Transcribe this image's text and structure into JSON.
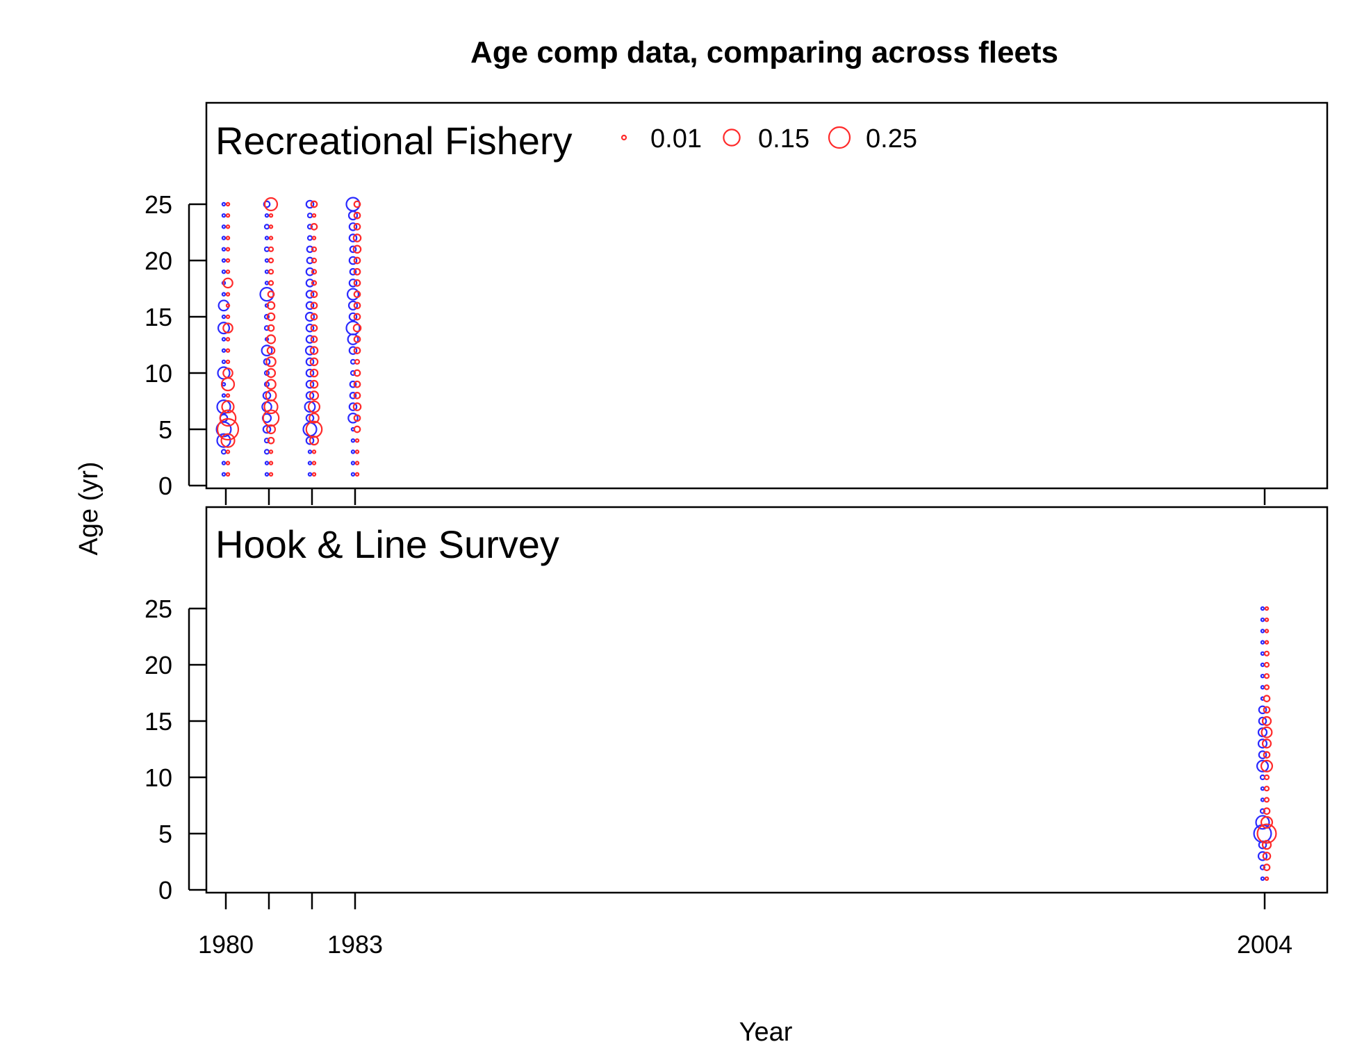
{
  "chart_data": {
    "type": "scatter",
    "title": "Age comp data,  comparing across fleets",
    "xlabel": "Year",
    "ylabel": "Age (yr)",
    "x_tick_labels": [
      "1980",
      "1983",
      "2004"
    ],
    "x_ticks": [
      1980,
      1981,
      1982,
      1983,
      2004
    ],
    "y_ticks": [
      0,
      5,
      10,
      15,
      20,
      25
    ],
    "ylim": [
      0,
      25
    ],
    "colors": {
      "female": "#ff2a2a",
      "male": "#2a2aff"
    },
    "legend": {
      "placement": "top",
      "entries": [
        {
          "label": "0.01",
          "value": 0.01
        },
        {
          "label": "0.15",
          "value": 0.15
        },
        {
          "label": "0.25",
          "value": 0.25
        }
      ]
    },
    "panels": [
      {
        "name": "Recreational Fishery",
        "points": [
          {
            "x": 1980,
            "sex": "male",
            "ages": [
              1,
              2,
              3,
              4,
              5,
              6,
              7,
              8,
              9,
              10,
              11,
              12,
              13,
              14,
              15,
              16,
              17,
              18,
              19,
              20,
              21,
              22,
              23,
              24,
              25
            ],
            "values": [
              0.005,
              0.005,
              0.01,
              0.1,
              0.12,
              0.03,
              0.1,
              0.005,
              0.005,
              0.08,
              0.005,
              0.005,
              0.005,
              0.07,
              0.005,
              0.06,
              0.005,
              0.005,
              0.005,
              0.005,
              0.005,
              0.005,
              0.005,
              0.005,
              0.005
            ]
          },
          {
            "x": 1980,
            "sex": "female",
            "ages": [
              1,
              2,
              3,
              4,
              5,
              6,
              7,
              8,
              9,
              10,
              11,
              12,
              13,
              14,
              15,
              16,
              17,
              18,
              19,
              20,
              21,
              22,
              23,
              24,
              25
            ],
            "values": [
              0.005,
              0.005,
              0.005,
              0.1,
              0.25,
              0.14,
              0.08,
              0.005,
              0.09,
              0.05,
              0.005,
              0.005,
              0.005,
              0.05,
              0.005,
              0.005,
              0.005,
              0.05,
              0.005,
              0.005,
              0.005,
              0.005,
              0.005,
              0.005,
              0.005
            ]
          },
          {
            "x": 1981,
            "sex": "male",
            "ages": [
              1,
              2,
              3,
              4,
              5,
              6,
              7,
              8,
              9,
              10,
              11,
              12,
              13,
              14,
              15,
              16,
              17,
              18,
              19,
              20,
              21,
              22,
              23,
              24,
              25
            ],
            "values": [
              0.005,
              0.005,
              0.01,
              0.01,
              0.03,
              0.04,
              0.05,
              0.03,
              0.01,
              0.01,
              0.02,
              0.06,
              0.005,
              0.01,
              0.01,
              0.005,
              0.1,
              0.005,
              0.005,
              0.005,
              0.01,
              0.005,
              0.01,
              0.005,
              0.02
            ]
          },
          {
            "x": 1981,
            "sex": "female",
            "ages": [
              1,
              2,
              3,
              4,
              5,
              6,
              7,
              8,
              9,
              10,
              11,
              12,
              13,
              14,
              15,
              16,
              17,
              18,
              19,
              20,
              21,
              22,
              23,
              24,
              25
            ],
            "values": [
              0.005,
              0.005,
              0.005,
              0.02,
              0.04,
              0.14,
              0.1,
              0.06,
              0.05,
              0.04,
              0.05,
              0.03,
              0.04,
              0.02,
              0.03,
              0.03,
              0.02,
              0.01,
              0.01,
              0.01,
              0.01,
              0.005,
              0.005,
              0.005,
              0.09
            ]
          },
          {
            "x": 1982,
            "sex": "male",
            "ages": [
              1,
              2,
              3,
              4,
              5,
              6,
              7,
              8,
              9,
              10,
              11,
              12,
              13,
              14,
              15,
              16,
              17,
              18,
              19,
              20,
              21,
              22,
              23,
              24,
              25
            ],
            "values": [
              0.005,
              0.005,
              0.005,
              0.03,
              0.1,
              0.03,
              0.06,
              0.03,
              0.03,
              0.03,
              0.03,
              0.04,
              0.03,
              0.03,
              0.04,
              0.03,
              0.03,
              0.03,
              0.03,
              0.02,
              0.02,
              0.01,
              0.01,
              0.01,
              0.03
            ]
          },
          {
            "x": 1982,
            "sex": "female",
            "ages": [
              1,
              2,
              3,
              4,
              5,
              6,
              7,
              8,
              9,
              10,
              11,
              12,
              13,
              14,
              15,
              16,
              17,
              18,
              19,
              20,
              21,
              22,
              23,
              24,
              25
            ],
            "values": [
              0.005,
              0.005,
              0.005,
              0.04,
              0.14,
              0.05,
              0.07,
              0.04,
              0.03,
              0.03,
              0.03,
              0.03,
              0.02,
              0.02,
              0.02,
              0.02,
              0.02,
              0.01,
              0.01,
              0.01,
              0.01,
              0.005,
              0.02,
              0.005,
              0.02
            ]
          },
          {
            "x": 1983,
            "sex": "male",
            "ages": [
              1,
              2,
              3,
              4,
              5,
              6,
              7,
              8,
              9,
              10,
              11,
              12,
              13,
              14,
              15,
              16,
              17,
              18,
              19,
              20,
              21,
              22,
              23,
              24,
              25
            ],
            "values": [
              0.005,
              0.005,
              0.005,
              0.005,
              0.005,
              0.05,
              0.03,
              0.02,
              0.02,
              0.01,
              0.01,
              0.03,
              0.06,
              0.1,
              0.03,
              0.04,
              0.07,
              0.03,
              0.02,
              0.03,
              0.02,
              0.03,
              0.03,
              0.04,
              0.1
            ]
          },
          {
            "x": 1983,
            "sex": "female",
            "ages": [
              1,
              2,
              3,
              4,
              5,
              6,
              7,
              8,
              9,
              10,
              11,
              12,
              13,
              14,
              15,
              16,
              17,
              18,
              19,
              20,
              21,
              22,
              23,
              24,
              25
            ],
            "values": [
              0.005,
              0.005,
              0.005,
              0.005,
              0.02,
              0.02,
              0.03,
              0.02,
              0.02,
              0.02,
              0.01,
              0.02,
              0.02,
              0.03,
              0.02,
              0.02,
              0.02,
              0.02,
              0.02,
              0.02,
              0.03,
              0.03,
              0.02,
              0.02,
              0.02
            ]
          }
        ]
      },
      {
        "name": "Hook & Line Survey",
        "points": [
          {
            "x": 2004,
            "sex": "male",
            "ages": [
              1,
              2,
              3,
              4,
              5,
              6,
              7,
              8,
              9,
              10,
              11,
              12,
              13,
              14,
              15,
              16,
              17,
              18,
              19,
              20,
              21,
              22,
              23,
              24,
              25
            ],
            "values": [
              0.005,
              0.01,
              0.04,
              0.03,
              0.17,
              0.1,
              0.01,
              0.005,
              0.005,
              0.01,
              0.07,
              0.03,
              0.04,
              0.04,
              0.03,
              0.03,
              0.005,
              0.005,
              0.005,
              0.005,
              0.005,
              0.005,
              0.005,
              0.005,
              0.005
            ]
          },
          {
            "x": 2004,
            "sex": "female",
            "ages": [
              1,
              2,
              3,
              4,
              5,
              6,
              7,
              8,
              9,
              10,
              11,
              12,
              13,
              14,
              15,
              16,
              17,
              18,
              19,
              20,
              21,
              22,
              23,
              24,
              25
            ],
            "values": [
              0.005,
              0.02,
              0.03,
              0.04,
              0.2,
              0.07,
              0.02,
              0.01,
              0.01,
              0.01,
              0.07,
              0.02,
              0.04,
              0.06,
              0.04,
              0.02,
              0.02,
              0.01,
              0.01,
              0.01,
              0.01,
              0.005,
              0.005,
              0.005,
              0.005
            ]
          }
        ]
      }
    ]
  }
}
